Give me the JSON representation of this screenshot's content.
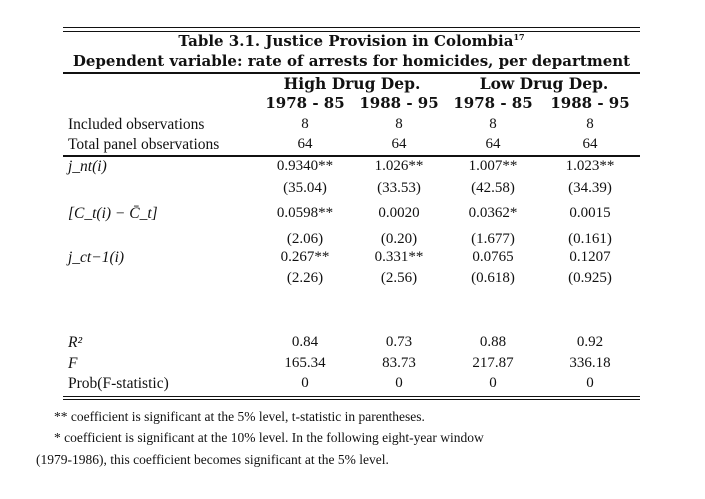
{
  "table": {
    "title": "Table 3.1. Justice Provision in Colombia",
    "title_footnote_ref": "17",
    "subtitle": "Dependent variable: rate of arrests for homicides, per department",
    "groups": [
      "High Drug Dep.",
      "Low Drug Dep."
    ],
    "periods": [
      "1978 - 85",
      "1988 - 95",
      "1978 - 85",
      "1988 - 95"
    ],
    "rows": [
      {
        "label": "Included observations",
        "values": [
          "8",
          "8",
          "8",
          "8"
        ]
      },
      {
        "label": "Total panel observations",
        "values": [
          "64",
          "64",
          "64",
          "64"
        ]
      },
      {
        "label": "j_nt(i)",
        "values": [
          "0.9340**",
          "1.026**",
          "1.007**",
          "1.023**"
        ]
      },
      {
        "label": "",
        "values": [
          "(35.04)",
          "(33.53)",
          "(42.58)",
          "(34.39)"
        ]
      },
      {
        "label": "[C_t(i) − C̄_t]",
        "values": [
          "0.0598**",
          "0.0020",
          "0.0362*",
          "0.0015"
        ]
      },
      {
        "label": "",
        "values": [
          "(2.06)",
          "(0.20)",
          "(1.677)",
          "(0.161)"
        ]
      },
      {
        "label": "j_ct−1(i)",
        "values": [
          "0.267**",
          "0.331**",
          "0.0765",
          "0.1207"
        ]
      },
      {
        "label": "",
        "values": [
          "(2.26)",
          "(2.56)",
          "(0.618)",
          "(0.925)"
        ]
      },
      {
        "label": "R²",
        "values": [
          "0.84",
          "0.73",
          "0.88",
          "0.92"
        ]
      },
      {
        "label": "F",
        "values": [
          "165.34",
          "83.73",
          "217.87",
          "336.18"
        ]
      },
      {
        "label": "Prob(F-statistic)",
        "values": [
          "0",
          "0",
          "0",
          "0"
        ]
      }
    ]
  },
  "footnotes": [
    "** coefficient is significant at the 5% level, t-statistic in parentheses.",
    "* coefficient is significant at the 10% level. In the following eight-year window",
    "(1979-1986), this coefficient becomes significant at the 5% level."
  ]
}
